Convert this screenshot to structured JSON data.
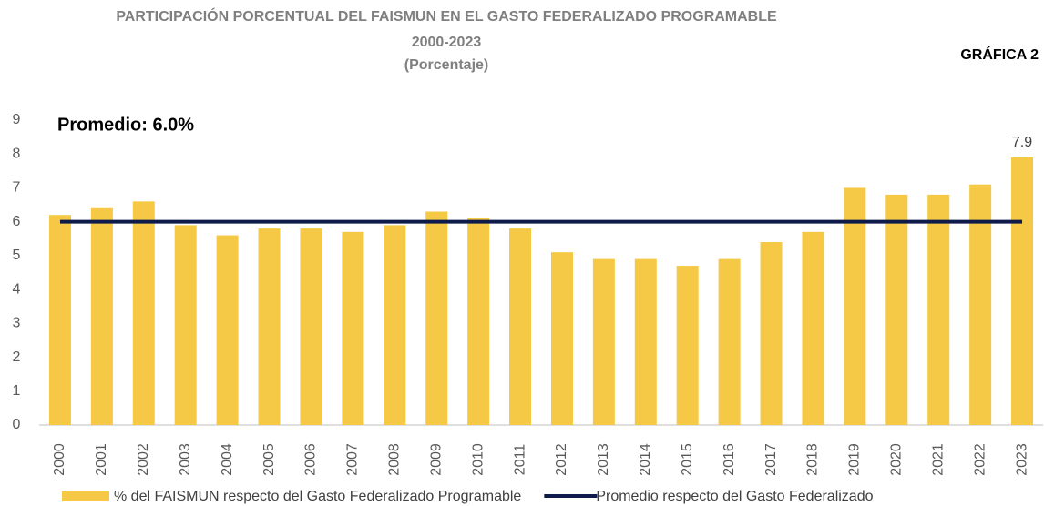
{
  "chart_data": {
    "type": "bar",
    "title": "PARTICIPACIÓN PORCENTUAL DEL FAISMUN EN EL GASTO FEDERALIZADO PROGRAMABLE",
    "subtitle": "2000-2023",
    "unit_label": "(Porcentaje)",
    "label": "GRÁFICA 2",
    "annotation": "Promedio: 6.0%",
    "categories": [
      "2000",
      "2001",
      "2002",
      "2003",
      "2004",
      "2005",
      "2006",
      "2007",
      "2008",
      "2009",
      "2010",
      "2011",
      "2012",
      "2013",
      "2014",
      "2015",
      "2016",
      "2017",
      "2018",
      "2019",
      "2020",
      "2021",
      "2022",
      "2023"
    ],
    "series": [
      {
        "name": "% del FAISMUN respecto del Gasto Federalizado Programable",
        "type": "bar",
        "color": "#f5c945",
        "values": [
          6.2,
          6.4,
          6.6,
          5.9,
          5.6,
          5.8,
          5.8,
          5.7,
          5.9,
          6.3,
          6.1,
          5.8,
          5.1,
          4.9,
          4.9,
          4.7,
          4.9,
          5.4,
          5.7,
          7.0,
          6.8,
          6.8,
          7.1,
          7.9
        ],
        "value_labels": [
          null,
          null,
          null,
          null,
          null,
          null,
          null,
          null,
          null,
          null,
          null,
          null,
          null,
          null,
          null,
          null,
          null,
          null,
          null,
          null,
          null,
          null,
          null,
          "7.9"
        ]
      },
      {
        "name": "Promedio respecto del Gasto Federalizado",
        "type": "line",
        "color": "#0d1a4a",
        "values": [
          6.0,
          6.0,
          6.0,
          6.0,
          6.0,
          6.0,
          6.0,
          6.0,
          6.0,
          6.0,
          6.0,
          6.0,
          6.0,
          6.0,
          6.0,
          6.0,
          6.0,
          6.0,
          6.0,
          6.0,
          6.0,
          6.0,
          6.0,
          6.0
        ]
      }
    ],
    "ylim": [
      0,
      9
    ],
    "yticks": [
      0,
      1,
      2,
      3,
      4,
      5,
      6,
      7,
      8,
      9
    ],
    "grid": false
  }
}
